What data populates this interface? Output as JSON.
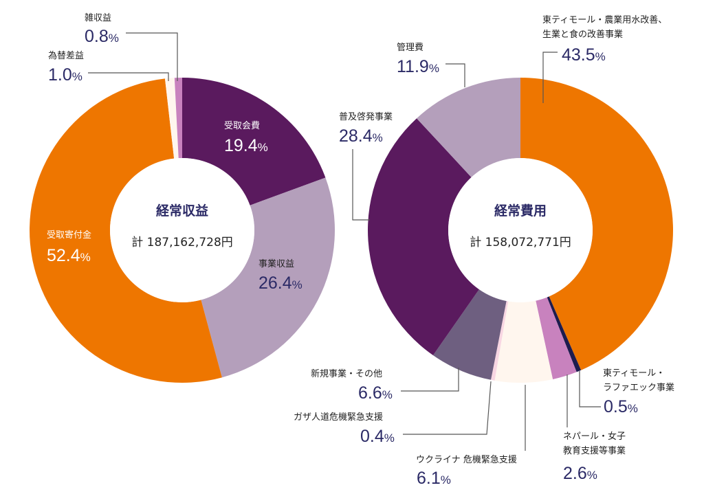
{
  "chart_data": [
    {
      "type": "pie",
      "title": "経常収益",
      "total_label": "計 187,162,728円",
      "slices": [
        {
          "name": "受取会費",
          "value": 19.4,
          "pct_text": "19.4",
          "color": "#5a1a5e"
        },
        {
          "name": "事業収益",
          "value": 26.4,
          "pct_text": "26.4",
          "color": "#b49fbb"
        },
        {
          "name": "受取寄付金",
          "value": 52.4,
          "pct_text": "52.4",
          "color": "#ee7600"
        },
        {
          "name": "為替差益",
          "value": 1.0,
          "pct_text": "1.0",
          "color": "#fff6ee"
        },
        {
          "name": "雑収益",
          "value": 0.8,
          "pct_text": "0.8",
          "color": "#c882be"
        }
      ]
    },
    {
      "type": "pie",
      "title": "経常費用",
      "total_label": "計 158,072,771円",
      "slices": [
        {
          "name": "東ティモール・農業用水改善、生業と食の改善事業",
          "name_lines": [
            "東ティモール・農業用水改善、",
            "生業と食の改善事業"
          ],
          "value": 43.5,
          "pct_text": "43.5",
          "color": "#ee7600"
        },
        {
          "name": "東ティモール・ラファエック事業",
          "name_lines": [
            "東ティモール・",
            "ラファエック事業"
          ],
          "value": 0.5,
          "pct_text": "0.5",
          "color": "#1e1c4e"
        },
        {
          "name": "ネパール・女子教育支援等事業",
          "name_lines": [
            "ネパール・女子",
            "教育支援等事業"
          ],
          "value": 2.6,
          "pct_text": "2.6",
          "color": "#c882be"
        },
        {
          "name": "ウクライナ 危機緊急支援",
          "name_lines": [
            "ウクライナ 危機緊急支援"
          ],
          "value": 6.1,
          "pct_text": "6.1",
          "color": "#fff6ee"
        },
        {
          "name": "ガザ人道危機緊急支援",
          "name_lines": [
            "ガザ人道危機緊急支援"
          ],
          "value": 0.4,
          "pct_text": "0.4",
          "color": "#f8d6e2"
        },
        {
          "name": "新規事業・その他",
          "name_lines": [
            "新規事業・その他"
          ],
          "value": 6.6,
          "pct_text": "6.6",
          "color": "#6e5f80"
        },
        {
          "name": "普及啓発事業",
          "name_lines": [
            "普及啓発事業"
          ],
          "value": 28.4,
          "pct_text": "28.4",
          "color": "#5a1a5e"
        },
        {
          "name": "管理費",
          "name_lines": [
            "管理費"
          ],
          "value": 11.9,
          "pct_text": "11.9",
          "color": "#b49fbb"
        }
      ]
    }
  ]
}
